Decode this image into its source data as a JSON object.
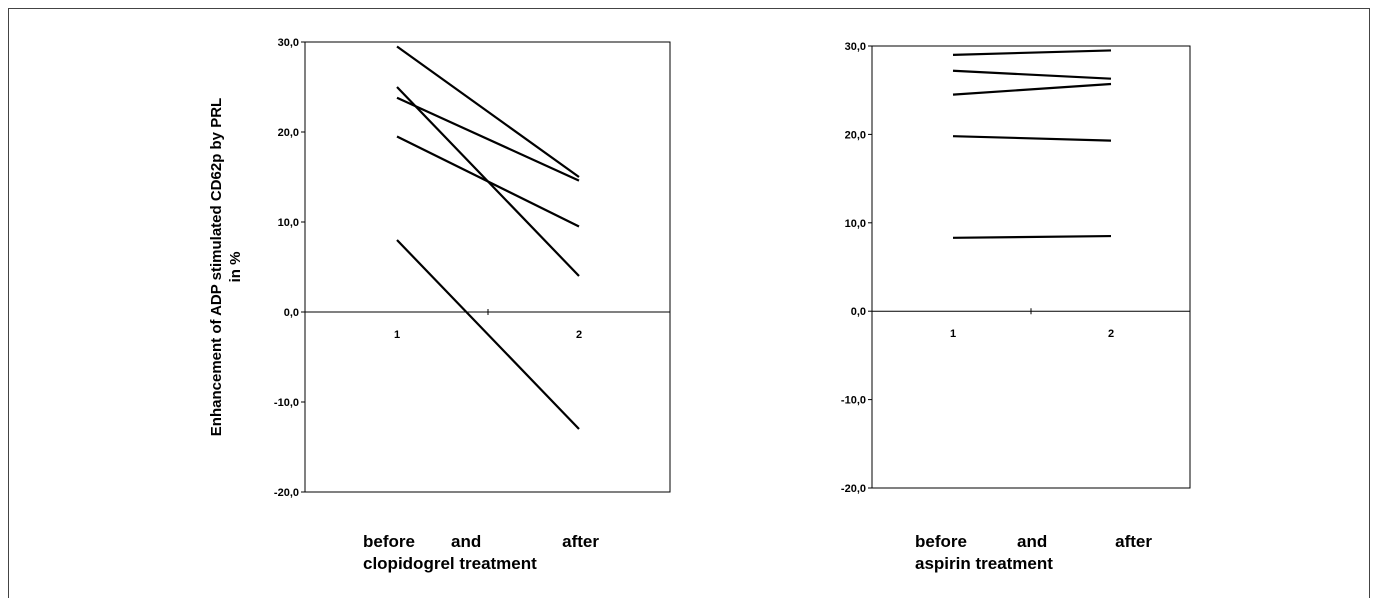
{
  "chart_data": [
    {
      "type": "line",
      "title": "",
      "ylabel_lines": [
        "Enhancement of ADP stimulated CD62p by PRL",
        "in %"
      ],
      "xlabel_words": [
        "before",
        "and",
        "after"
      ],
      "xlabel_line2": "clopidogrel treatment",
      "x": [
        "1",
        "2"
      ],
      "ylim": [
        -20,
        30
      ],
      "yticks": [
        "30,0",
        "20,0",
        "10,0",
        "0,0",
        "-10,0",
        "-20,0"
      ],
      "series": [
        {
          "values": [
            29.5,
            15.0
          ]
        },
        {
          "values": [
            25.0,
            4.0
          ]
        },
        {
          "values": [
            23.8,
            14.6
          ]
        },
        {
          "values": [
            19.5,
            9.5
          ]
        },
        {
          "values": [
            8.0,
            -13.0
          ]
        }
      ]
    },
    {
      "type": "line",
      "title": "",
      "xlabel_words": [
        "before",
        "and",
        "after"
      ],
      "xlabel_line2": "aspirin treatment",
      "x": [
        "1",
        "2"
      ],
      "ylim": [
        -20,
        30
      ],
      "yticks": [
        "30,0",
        "20,0",
        "10,0",
        "0,0",
        "-10,0",
        "-20,0"
      ],
      "series": [
        {
          "values": [
            29.0,
            29.5
          ]
        },
        {
          "values": [
            27.2,
            26.3
          ]
        },
        {
          "values": [
            24.5,
            25.7
          ]
        },
        {
          "values": [
            19.8,
            19.3
          ]
        },
        {
          "values": [
            8.3,
            8.5
          ]
        }
      ]
    }
  ]
}
